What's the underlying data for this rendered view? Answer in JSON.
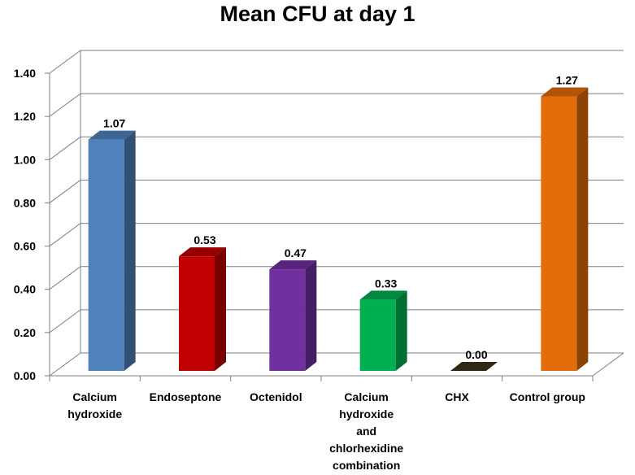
{
  "chart_data": {
    "type": "bar",
    "title": "Mean CFU at day 1",
    "xlabel": "",
    "ylabel": "",
    "ylim": [
      0,
      1.4
    ],
    "yticks": [
      "0.00",
      "0.20",
      "0.40",
      "0.60",
      "0.80",
      "1.00",
      "1.20",
      "1.40"
    ],
    "grid": true,
    "legend": "none",
    "three_d": true,
    "categories": [
      "Calcium hydroxide",
      "Endoseptone",
      "Octenidol",
      "Calcium hydroxide and chlorhexidine combination",
      "CHX",
      "Control group"
    ],
    "values": [
      1.07,
      0.53,
      0.47,
      0.33,
      0.0,
      1.27
    ],
    "data_labels": [
      "1.07",
      "0.53",
      "0.47",
      "0.33",
      "0.00",
      "1.27"
    ],
    "colors": [
      "#4f81bd",
      "#c00000",
      "#7030a0",
      "#00b050",
      "#3d3317",
      "#e46c0a"
    ]
  }
}
